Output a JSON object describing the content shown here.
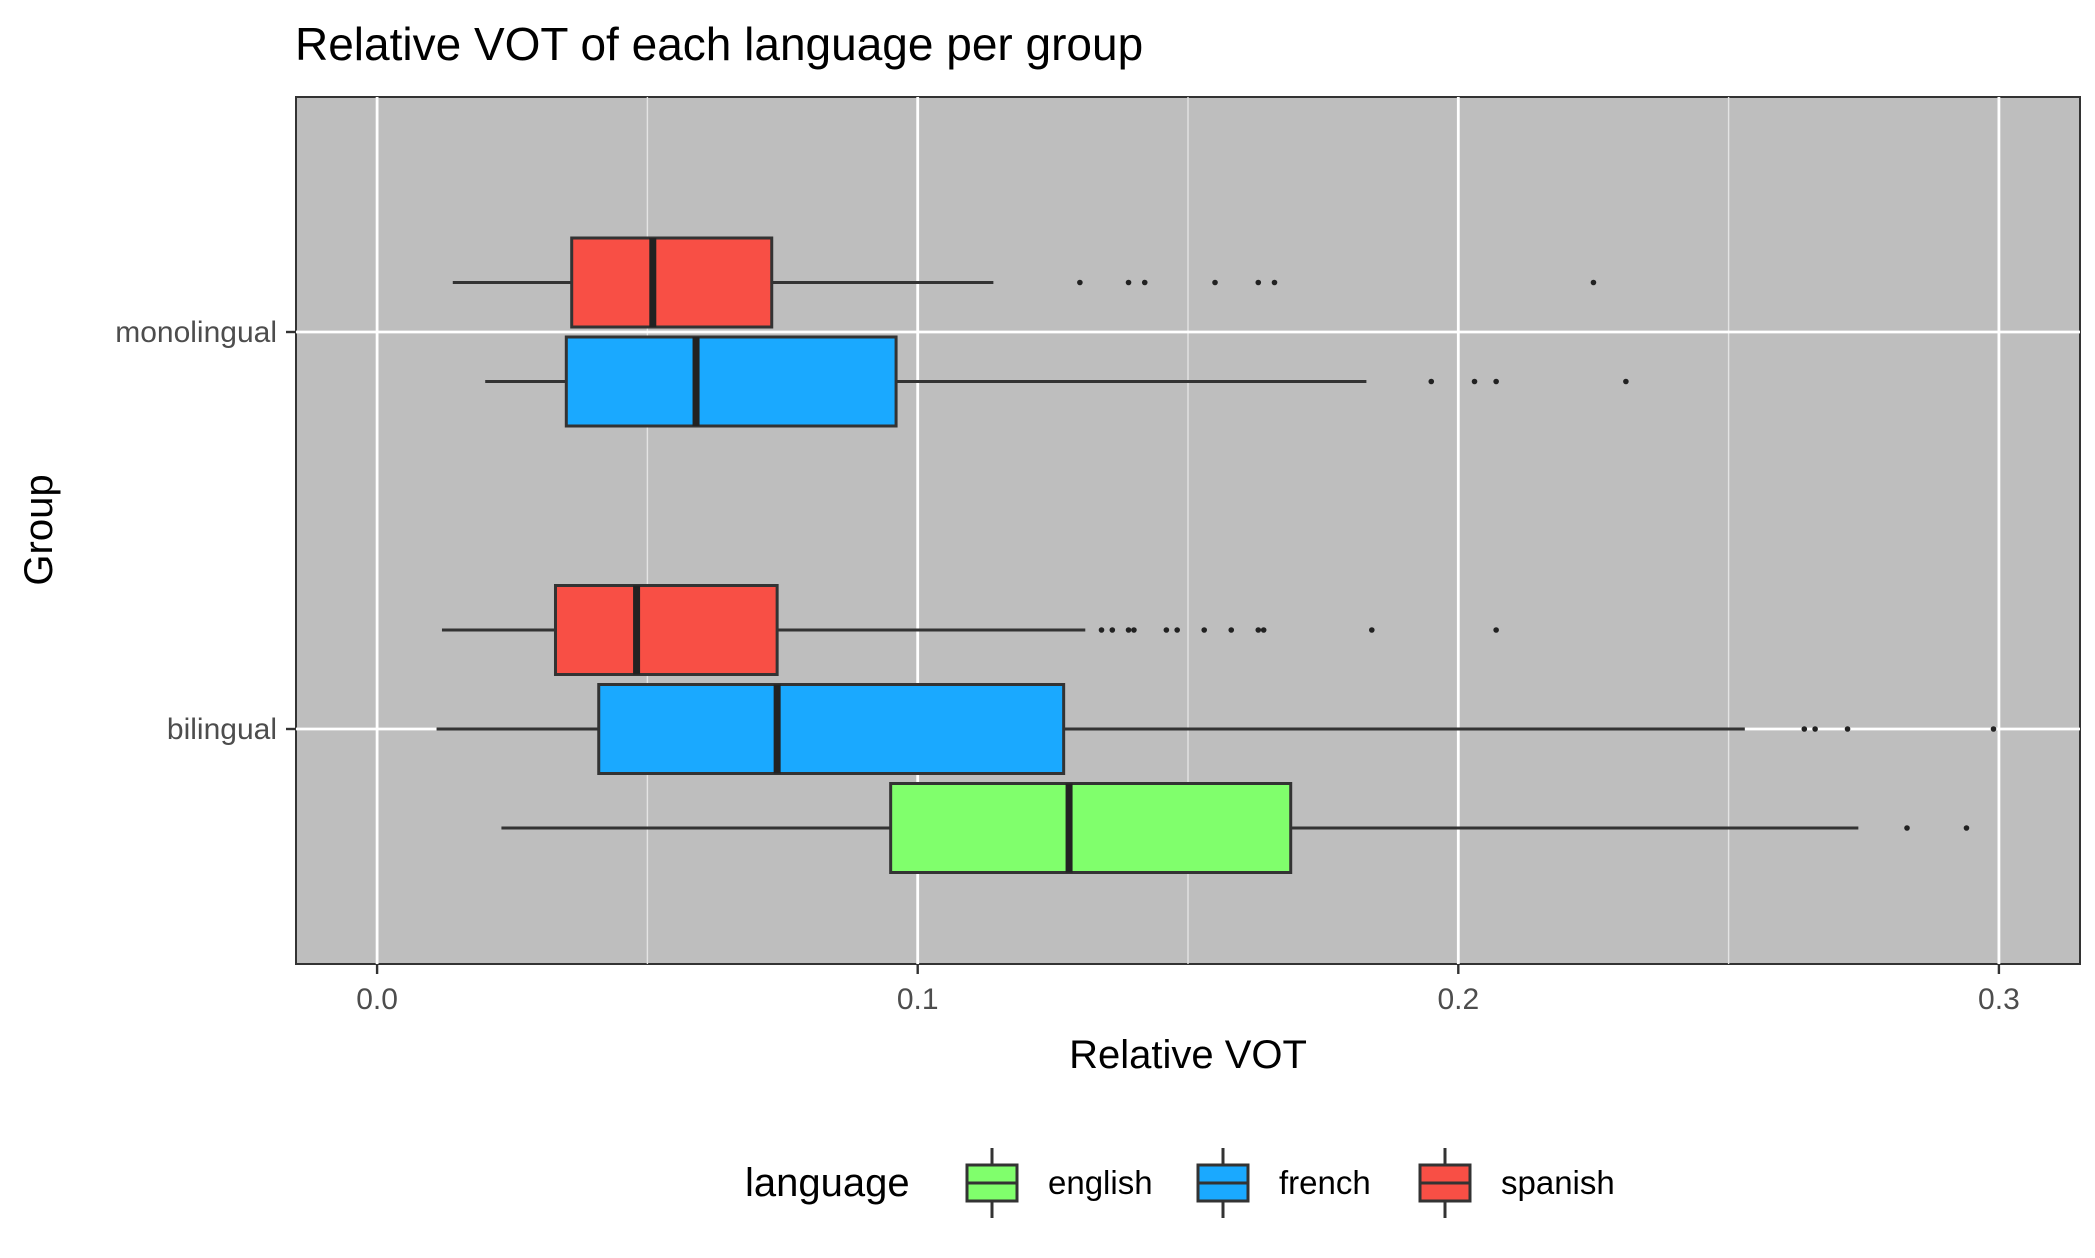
{
  "chart_data": {
    "type": "boxplot",
    "orientation": "horizontal",
    "title": "Relative VOT of each language per group",
    "xlabel": "Relative VOT",
    "ylabel": "Group",
    "xlim": [
      -0.015,
      0.315
    ],
    "x_ticks": [
      0.0,
      0.1,
      0.2,
      0.3
    ],
    "x_tick_labels": [
      "0.0",
      "0.1",
      "0.2",
      "0.3"
    ],
    "categories": [
      "bilingual",
      "monolingual"
    ],
    "grid": true,
    "panel_background": "#bebebe",
    "legend": {
      "title": "language",
      "position": "bottom",
      "entries": [
        "english",
        "french",
        "spanish"
      ]
    },
    "series": [
      {
        "name": "english",
        "color": "#80ff6c",
        "boxes": [
          {
            "group": "bilingual",
            "whisker_low": 0.023,
            "q1": 0.095,
            "median": 0.128,
            "q3": 0.169,
            "whisker_high": 0.274,
            "outliers": [
              0.283,
              0.294
            ]
          }
        ]
      },
      {
        "name": "french",
        "color": "#1aa9ff",
        "boxes": [
          {
            "group": "bilingual",
            "whisker_low": 0.011,
            "q1": 0.041,
            "median": 0.074,
            "q3": 0.127,
            "whisker_high": 0.253,
            "outliers": [
              0.264,
              0.266,
              0.272,
              0.299
            ]
          },
          {
            "group": "monolingual",
            "whisker_low": 0.02,
            "q1": 0.035,
            "median": 0.059,
            "q3": 0.096,
            "whisker_high": 0.183,
            "outliers": [
              0.195,
              0.203,
              0.207,
              0.231
            ]
          }
        ]
      },
      {
        "name": "spanish",
        "color": "#f84f45",
        "boxes": [
          {
            "group": "bilingual",
            "whisker_low": 0.012,
            "q1": 0.033,
            "median": 0.048,
            "q3": 0.074,
            "whisker_high": 0.131,
            "outliers": [
              0.134,
              0.136,
              0.139,
              0.14,
              0.146,
              0.148,
              0.153,
              0.158,
              0.163,
              0.164,
              0.184,
              0.207
            ]
          },
          {
            "group": "monolingual",
            "whisker_low": 0.014,
            "q1": 0.036,
            "median": 0.051,
            "q3": 0.073,
            "whisker_high": 0.114,
            "outliers": [
              0.13,
              0.139,
              0.142,
              0.155,
              0.163,
              0.166,
              0.225
            ]
          }
        ]
      }
    ]
  }
}
